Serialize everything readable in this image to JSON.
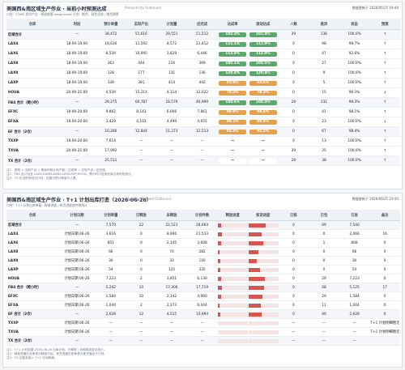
{
  "top": {
    "title": "美国西&南区域生产作业 · 当前小时预测达成",
    "subtitle": "Productivity Outbound",
    "updated": "数据更新于 2026/06/25 19:40",
    "note": "口径：FOMS 实时产出 · 预测依据 assignment 计划 · 颜色：绿色达成 / 橙色预警",
    "columns": [
      "仓库",
      "时段",
      "预计单量",
      "实际产出",
      "计划量",
      "应完成",
      "达成率",
      "滚动达成",
      "人数",
      "差异",
      "状态",
      "预测"
    ],
    "rows": [
      {
        "cells": [
          "区域合计",
          "—",
          "38,472",
          "51,616",
          "29,551",
          "51,512",
          "29",
          "236",
          "100.0%",
          "↑"
        ],
        "rate": "102.3%",
        "roll": "101.4%",
        "tone": "#5aa96a"
      },
      {
        "cells": [
          "LAX4",
          "18:00-19:00",
          "19,630",
          "11,592",
          "8,572",
          "21,412",
          "0",
          "98",
          "99.7%",
          "↑"
        ],
        "rate": "111.1%",
        "roll": "111.0%",
        "tone": "#5aa96a"
      },
      {
        "cells": [
          "LAX6",
          "18:00-19:00",
          "8,539",
          "10,995",
          "3,829",
          "6,446",
          "0",
          "47",
          "92.6%",
          "↑"
        ],
        "rate": "113.9%",
        "roll": "113.9%",
        "tone": "#5aa96a"
      },
      {
        "cells": [
          "LAX8",
          "18:00-19:00",
          "363",
          "444",
          "216",
          "369",
          "0",
          "27",
          "100.0%",
          "↑"
        ],
        "rate": "105.1%",
        "roll": "105.5%",
        "tone": "#5aa96a"
      },
      {
        "cells": [
          "LAX9",
          "18:00-19:00",
          "128",
          "177",
          "131",
          "136",
          "0",
          "9",
          "100.0%",
          "↑"
        ],
        "rate": "120.4%",
        "roll": "120.4%",
        "tone": "#5aa96a"
      },
      {
        "cells": [
          "LAXP",
          "18:00-19:00",
          "339",
          "391",
          "414",
          "442",
          "0",
          "5",
          "100.0%",
          "↑"
        ],
        "rate": "93.8%",
        "roll": "93.6%",
        "tone": "#e8a04a"
      },
      {
        "cells": [
          "HOUA",
          "20:00-21:00",
          "4,539",
          "15,214",
          "4,114",
          "12,022",
          "0",
          "15",
          "96.3%",
          "↓"
        ],
        "rate": "78.3%",
        "roll": "78.3%",
        "tone": "#e8a04a"
      },
      {
        "cells": [
          "FB4 合计（跨小时）",
          "—",
          "29,275",
          "60,787",
          "18,576",
          "40,999",
          "29",
          "231",
          "99.3%",
          "↑"
        ],
        "rate": "100.6%",
        "roll": "100.4%",
        "tone": "#5aa96a"
      },
      {
        "cells": [
          "EFXC",
          "19:00-20:00",
          "9,862",
          "8,143",
          "6,066",
          "7,861",
          "0",
          "41",
          "98.1%",
          "↑"
        ],
        "rate": "98.9%",
        "roll": "98.6%",
        "tone": "#e8a04a"
      },
      {
        "cells": [
          "EFXA",
          "19:00-20:00",
          "3,429",
          "4,103",
          "4,499",
          "4,655",
          "0",
          "23",
          "100.0%",
          "↓"
        ],
        "rate": "88.1%",
        "roll": "88.0%",
        "tone": "#e8a04a"
      },
      {
        "cells": [
          "EF 合计（2仓）",
          "—",
          "10,286",
          "12,844",
          "11,373",
          "12,513",
          "0",
          "67",
          "98.4%",
          "↑"
        ],
        "rate": "95.5%",
        "roll": "95.5%",
        "tone": "#e8a04a"
      },
      {
        "cells": [
          "TXXP",
          "19:00-20:00",
          "7,614",
          "—",
          "—",
          "—",
          "0",
          "13",
          "100.0%",
          "↑"
        ],
        "rate": "—",
        "roll": "—",
        "tone": "#ffffff"
      },
      {
        "cells": [
          "TXUA",
          "20:00-21:00",
          "17,992",
          "—",
          "—",
          "—",
          "29",
          "25",
          "100.0%",
          "↑"
        ],
        "rate": "—",
        "roll": "—",
        "tone": "#ffffff"
      },
      {
        "cells": [
          "TX 合计（2仓）",
          "—",
          "25,511",
          "—",
          "—",
          "—",
          "29",
          "38",
          "100.0%",
          "↑"
        ],
        "rate": "—",
        "roll": "—",
        "tone": "#ffffff"
      }
    ],
    "notes": [
      "注1：预测 = 当前产出 + 剩余时段计划产能；达成率 = 实际产出 / 应完成。",
      "注2：FB4 合计包含 LAX4/LAX6/LAX8/LAX9/LAXP/HOUA，跨小时口径按仓库当地时段统计。",
      "注3：TX 仓当前时段无计划，仅展示预计单量与人数。"
    ]
  },
  "bottom": {
    "title": "美国西&南区域生产作业 · T+1 计划出库打造（2026-06-26）",
    "subtitle": "Next Day Planned Outbound",
    "updated": "数据更新于 2026/06/25 19:40",
    "note": "口径：T+1 计划出库单量 · 释放进度 / 拣货进度按件数统计",
    "columns": [
      "仓库",
      "计划日期",
      "计划单量",
      "已释放",
      "未释放",
      "计划件数",
      "释放进度",
      "拣货进度",
      "已拣",
      "已包",
      "已发",
      "备注"
    ],
    "rows": [
      {
        "cells": [
          "区域合计",
          "—",
          "7,570",
          "22",
          "22,521",
          "28,664",
          "0",
          "69",
          "7,540",
          ""
        ],
        "release": 8,
        "release_label": "8.0%",
        "pick": 53,
        "pick_label": "53.0%"
      },
      {
        "cells": [
          "LAX4",
          "计划日期 06-26",
          "3,616",
          "0",
          "8,906",
          "21,533",
          "0",
          "0",
          "2,066",
          "16"
        ],
        "release": 12,
        "release_label": "12.0%",
        "pick": 40,
        "pick_label": "40.0%"
      },
      {
        "cells": [
          "LAX6",
          "计划日期 06-26",
          "851",
          "0",
          "2,145",
          "3,608",
          "0",
          "1",
          "808",
          "0"
        ],
        "release": 9,
        "release_label": "9.0%",
        "pick": 45,
        "pick_label": "45.0%"
      },
      {
        "cells": [
          "LAX8",
          "计划日期 06-26",
          "66",
          "0",
          "70",
          "282",
          "0",
          "0",
          "66",
          "0"
        ],
        "release": 5,
        "release_label": "5.0%",
        "pick": 30,
        "pick_label": "30.0%"
      },
      {
        "cells": [
          "LAX9",
          "计划日期 06-26",
          "30",
          "0",
          "33",
          "116",
          "0",
          "0",
          "30",
          "0"
        ],
        "release": 6,
        "release_label": "6.0%",
        "pick": 25,
        "pick_label": "25.0%"
      },
      {
        "cells": [
          "LAXP",
          "计划日期 06-26",
          "54",
          "0",
          "125",
          "335",
          "0",
          "0",
          "54",
          "0"
        ],
        "release": 7,
        "release_label": "7.0%",
        "pick": 35,
        "pick_label": "35.0%"
      },
      {
        "cells": [
          "HOUA",
          "计划日期 06-26",
          "7,223",
          "2",
          "3,851",
          "6,130",
          "0",
          "29",
          "7,223",
          "0"
        ],
        "release": 10,
        "release_label": "10.0%",
        "pick": 50,
        "pick_label": "50.0%"
      },
      {
        "cells": [
          "FB4 合计（跨小时）",
          "—",
          "5,242",
          "10",
          "17,306",
          "17,719",
          "0",
          "68",
          "5,125",
          "17"
        ],
        "release": 11,
        "release_label": "11.0%",
        "pick": 48,
        "pick_label": "48.0%"
      },
      {
        "cells": [
          "EFXC",
          "计划日期 06-26",
          "1,584",
          "10",
          "2,142",
          "4,960",
          "0",
          "29",
          "1,584",
          "0"
        ],
        "release": 9,
        "release_label": "9.0%",
        "pick": 42,
        "pick_label": "42.0%"
      },
      {
        "cells": [
          "EFXA",
          "计划日期 06-26",
          "1,044",
          "2",
          "2,373",
          "6,044",
          "0",
          "11",
          "1,044",
          "0"
        ],
        "release": 4,
        "release_label": "4.0%",
        "pick": 38,
        "pick_label": "38.0%"
      },
      {
        "cells": [
          "EF 合计（2仓）",
          "—",
          "2,628",
          "12",
          "4,515",
          "10,994",
          "0",
          "40",
          "2,628",
          "0"
        ],
        "release": 7,
        "release_label": "7.0%",
        "pick": 40,
        "pick_label": "40.0%"
      },
      {
        "cells": [
          "TXXP",
          "计划日期 06-26",
          "—",
          "—",
          "—",
          "—",
          "—",
          "—",
          "—",
          "T+1 计划明细暂无"
        ],
        "release": 0,
        "release_label": "—",
        "pick": 0,
        "pick_label": "—"
      },
      {
        "cells": [
          "TXUA",
          "计划日期 06-26",
          "—",
          "—",
          "—",
          "—",
          "—",
          "—",
          "—",
          "T+1 计划明细暂无"
        ],
        "release": 0,
        "release_label": "—",
        "pick": 0,
        "pick_label": "—"
      },
      {
        "cells": [
          "TX 合计（2仓）",
          "—",
          "—",
          "—",
          "—",
          "—",
          "—",
          "—",
          "—",
          ""
        ],
        "release": 0,
        "release_label": "—",
        "pick": 0,
        "pick_label": "—"
      }
    ],
    "notes": [
      "注1：T+1 计划依据 2026-06-26 出库计划，已释放 / 未释放按波次统计。",
      "注2：释放进度红色条表示释放不足，拣货进度红色条表示拣货落后于计划。",
      "注3：TX 仓暂未接入 T+1 计划明细。"
    ]
  }
}
